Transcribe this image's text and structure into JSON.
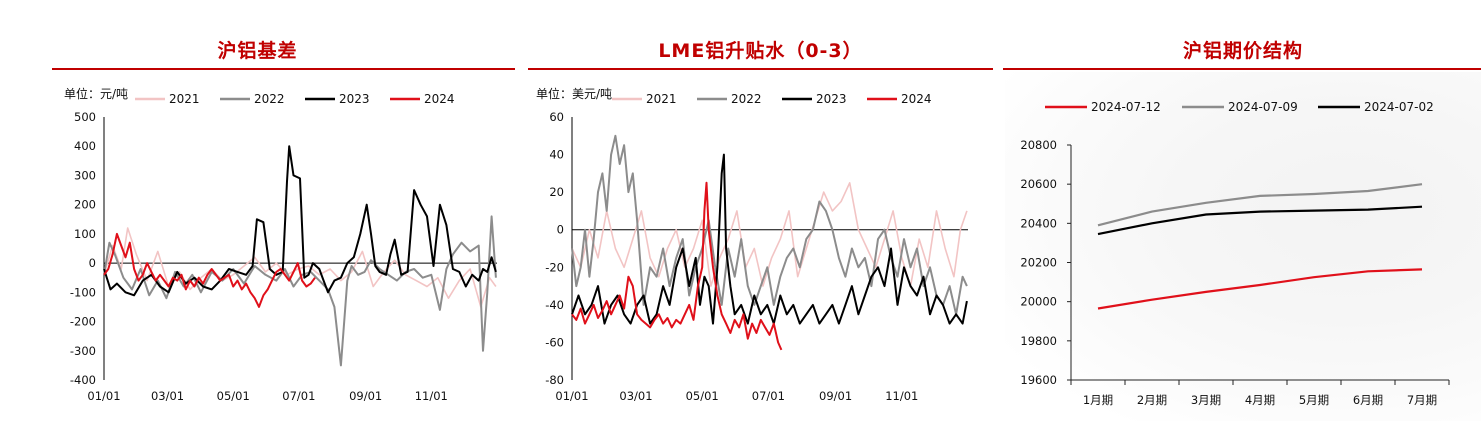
{
  "panels": [
    {
      "title": "沪铝基差"
    },
    {
      "title": "LME铝升贴水（0-3）"
    },
    {
      "title": "沪铝期价结构"
    }
  ],
  "colors": {
    "s2021": "#f2c4c4",
    "s2022": "#8c8c8c",
    "s2023": "#000000",
    "s2024": "#e0101a",
    "title": "#c00000"
  },
  "chart_data": [
    {
      "type": "line",
      "title": "沪铝基差",
      "unit_label": "单位：元/吨",
      "xlim": [
        0,
        365
      ],
      "ylim": [
        -400,
        500
      ],
      "yticks": [
        500,
        400,
        300,
        200,
        100,
        0,
        -100,
        -200,
        -300,
        -400
      ],
      "xticks": [
        {
          "label": "01/01",
          "day": 0
        },
        {
          "label": "03/01",
          "day": 59
        },
        {
          "label": "05/01",
          "day": 120
        },
        {
          "label": "07/01",
          "day": 181
        },
        {
          "label": "09/01",
          "day": 243
        },
        {
          "label": "11/01",
          "day": 304
        }
      ],
      "series": [
        {
          "name": "2021",
          "x": [
            0,
            8,
            16,
            22,
            30,
            40,
            50,
            60,
            70,
            80,
            90,
            100,
            110,
            120,
            130,
            140,
            150,
            160,
            170,
            180,
            190,
            200,
            210,
            220,
            230,
            240,
            250,
            260,
            270,
            280,
            290,
            300,
            310,
            320,
            330,
            340,
            350,
            358,
            364
          ],
          "y": [
            -40,
            60,
            -20,
            120,
            30,
            -60,
            40,
            -80,
            -30,
            -90,
            -50,
            -20,
            -60,
            -40,
            -10,
            20,
            -30,
            0,
            -40,
            -20,
            -10,
            -40,
            -20,
            -60,
            -30,
            40,
            -80,
            -30,
            10,
            -40,
            -60,
            -80,
            -50,
            -120,
            -60,
            -20,
            -150,
            -50,
            -80
          ]
        },
        {
          "name": "2022",
          "x": [
            0,
            5,
            10,
            18,
            26,
            34,
            42,
            50,
            58,
            66,
            74,
            82,
            90,
            100,
            110,
            120,
            130,
            140,
            150,
            160,
            168,
            176,
            184,
            192,
            200,
            208,
            214,
            220,
            226,
            230,
            236,
            242,
            248,
            256,
            264,
            272,
            280,
            288,
            296,
            304,
            312,
            318,
            324,
            332,
            340,
            348,
            352,
            356,
            360,
            364
          ],
          "y": [
            -40,
            70,
            30,
            -50,
            -90,
            -20,
            -110,
            -60,
            -120,
            -30,
            -80,
            -40,
            -100,
            -30,
            -60,
            -20,
            -70,
            -10,
            -40,
            -60,
            -20,
            -80,
            -40,
            -30,
            -60,
            -90,
            -150,
            -350,
            -60,
            -10,
            -40,
            -30,
            10,
            -20,
            -40,
            -60,
            -30,
            -20,
            -50,
            -40,
            -160,
            -20,
            30,
            70,
            40,
            60,
            -300,
            -100,
            160,
            -50
          ]
        },
        {
          "name": "2023",
          "x": [
            0,
            6,
            12,
            20,
            28,
            36,
            44,
            52,
            60,
            68,
            76,
            84,
            92,
            100,
            108,
            116,
            124,
            132,
            138,
            142,
            148,
            154,
            160,
            166,
            170,
            172,
            176,
            182,
            186,
            190,
            194,
            200,
            204,
            208,
            214,
            220,
            226,
            232,
            238,
            244,
            248,
            252,
            256,
            262,
            266,
            270,
            276,
            282,
            288,
            294,
            300,
            306,
            312,
            318,
            324,
            330,
            336,
            342,
            348,
            352,
            356,
            360,
            364
          ],
          "y": [
            -20,
            -90,
            -70,
            -100,
            -110,
            -60,
            -40,
            -80,
            -100,
            -30,
            -70,
            -50,
            -80,
            -90,
            -60,
            -20,
            -30,
            -40,
            -10,
            150,
            140,
            -20,
            -40,
            -30,
            280,
            400,
            300,
            290,
            -50,
            -40,
            0,
            -20,
            -60,
            -100,
            -60,
            -50,
            0,
            20,
            100,
            200,
            100,
            -10,
            -30,
            -40,
            30,
            80,
            -40,
            -30,
            250,
            200,
            160,
            -10,
            200,
            130,
            -20,
            -30,
            -80,
            -40,
            -60,
            -20,
            -30,
            20,
            -30
          ]
        },
        {
          "name": "2024",
          "x": [
            0,
            4,
            8,
            12,
            16,
            20,
            24,
            28,
            32,
            36,
            40,
            44,
            48,
            52,
            56,
            60,
            64,
            68,
            72,
            76,
            80,
            84,
            88,
            92,
            96,
            100,
            104,
            108,
            112,
            116,
            120,
            124,
            128,
            132,
            136,
            140,
            144,
            148,
            152,
            156,
            160,
            164,
            168,
            172,
            176,
            180,
            184,
            188,
            192,
            196
          ],
          "y": [
            -40,
            -20,
            30,
            100,
            60,
            20,
            70,
            -20,
            -60,
            -40,
            0,
            -30,
            -60,
            -40,
            -60,
            -80,
            -50,
            -60,
            -40,
            -90,
            -60,
            -80,
            -50,
            -70,
            -40,
            -20,
            -40,
            -60,
            -50,
            -40,
            -80,
            -60,
            -90,
            -70,
            -100,
            -120,
            -150,
            -110,
            -90,
            -60,
            -30,
            -20,
            -40,
            -60,
            -30,
            0,
            -60,
            -80,
            -70,
            -50
          ]
        }
      ]
    },
    {
      "type": "line",
      "title": "LME铝升贴水（0-3）",
      "unit_label": "单位：美元/吨",
      "xlim": [
        0,
        365
      ],
      "ylim": [
        -80,
        60
      ],
      "yticks": [
        60,
        40,
        20,
        0,
        -20,
        -40,
        -60,
        -80
      ],
      "xticks": [
        {
          "label": "01/01",
          "day": 0
        },
        {
          "label": "03/01",
          "day": 59
        },
        {
          "label": "05/01",
          "day": 120
        },
        {
          "label": "07/01",
          "day": 181
        },
        {
          "label": "09/01",
          "day": 243
        },
        {
          "label": "11/01",
          "day": 304
        }
      ],
      "series": [
        {
          "name": "2021",
          "x": [
            0,
            8,
            16,
            24,
            32,
            40,
            48,
            56,
            64,
            72,
            80,
            88,
            96,
            104,
            112,
            120,
            128,
            136,
            144,
            152,
            160,
            168,
            176,
            184,
            192,
            200,
            208,
            216,
            224,
            232,
            240,
            248,
            256,
            264,
            272,
            280,
            288,
            296,
            304,
            312,
            320,
            328,
            336,
            344,
            352,
            358,
            364
          ],
          "y": [
            -10,
            -20,
            0,
            -15,
            10,
            -10,
            -20,
            -5,
            10,
            -15,
            -25,
            -10,
            0,
            -20,
            -10,
            5,
            -30,
            -15,
            -5,
            10,
            -20,
            -10,
            -30,
            -15,
            -5,
            10,
            -25,
            -10,
            5,
            20,
            10,
            15,
            25,
            0,
            -10,
            -20,
            -5,
            10,
            -15,
            -30,
            -5,
            -20,
            10,
            -10,
            -25,
            0,
            10
          ]
        },
        {
          "name": "2022",
          "x": [
            0,
            4,
            8,
            12,
            16,
            20,
            24,
            28,
            32,
            36,
            40,
            44,
            48,
            52,
            56,
            60,
            66,
            72,
            78,
            84,
            90,
            96,
            102,
            108,
            114,
            120,
            126,
            132,
            138,
            144,
            150,
            156,
            162,
            168,
            174,
            180,
            186,
            192,
            198,
            204,
            210,
            216,
            222,
            228,
            234,
            240,
            246,
            252,
            258,
            264,
            270,
            276,
            282,
            288,
            294,
            300,
            306,
            312,
            318,
            324,
            330,
            336,
            342,
            348,
            354,
            360,
            364
          ],
          "y": [
            -10,
            -30,
            -20,
            0,
            -25,
            -5,
            20,
            30,
            10,
            40,
            50,
            35,
            45,
            20,
            30,
            5,
            -40,
            -20,
            -25,
            -10,
            -30,
            -15,
            -5,
            -35,
            -20,
            -10,
            5,
            -20,
            -40,
            -10,
            -25,
            -5,
            -30,
            -40,
            -30,
            -20,
            -40,
            -25,
            -15,
            -10,
            -20,
            -5,
            0,
            15,
            10,
            0,
            -15,
            -25,
            -10,
            -20,
            -15,
            -30,
            -5,
            0,
            -15,
            -25,
            -5,
            -20,
            -10,
            -30,
            -20,
            -35,
            -40,
            -30,
            -45,
            -25,
            -30
          ]
        },
        {
          "name": "2023",
          "x": [
            0,
            6,
            12,
            18,
            24,
            30,
            36,
            42,
            48,
            54,
            60,
            66,
            72,
            78,
            84,
            90,
            96,
            102,
            108,
            114,
            118,
            122,
            126,
            130,
            134,
            138,
            140,
            142,
            146,
            150,
            156,
            162,
            168,
            174,
            180,
            186,
            192,
            198,
            204,
            210,
            216,
            222,
            228,
            234,
            240,
            246,
            252,
            258,
            264,
            270,
            276,
            282,
            288,
            294,
            300,
            306,
            312,
            318,
            324,
            330,
            336,
            342,
            348,
            354,
            360,
            364
          ],
          "y": [
            -45,
            -35,
            -45,
            -40,
            -30,
            -50,
            -40,
            -35,
            -45,
            -50,
            -40,
            -35,
            -50,
            -45,
            -30,
            -40,
            -20,
            -10,
            -30,
            -15,
            -40,
            -25,
            -30,
            -50,
            -20,
            30,
            40,
            -10,
            -30,
            -45,
            -40,
            -50,
            -35,
            -45,
            -40,
            -50,
            -35,
            -45,
            -40,
            -50,
            -45,
            -40,
            -50,
            -45,
            -40,
            -50,
            -40,
            -30,
            -45,
            -35,
            -25,
            -20,
            -30,
            -10,
            -40,
            -20,
            -30,
            -35,
            -25,
            -45,
            -35,
            -40,
            -50,
            -45,
            -50,
            -38
          ]
        },
        {
          "name": "2024",
          "x": [
            0,
            4,
            8,
            12,
            16,
            20,
            24,
            28,
            32,
            36,
            40,
            44,
            48,
            52,
            56,
            60,
            64,
            68,
            72,
            76,
            80,
            84,
            88,
            92,
            96,
            100,
            104,
            108,
            112,
            116,
            120,
            122,
            124,
            126,
            130,
            134,
            138,
            142,
            146,
            150,
            154,
            158,
            162,
            166,
            170,
            174,
            178,
            182,
            186,
            190,
            193
          ],
          "y": [
            -45,
            -48,
            -42,
            -50,
            -45,
            -40,
            -47,
            -43,
            -38,
            -45,
            -40,
            -35,
            -42,
            -25,
            -30,
            -45,
            -48,
            -50,
            -52,
            -48,
            -45,
            -50,
            -47,
            -52,
            -48,
            -50,
            -45,
            -40,
            -48,
            -30,
            -20,
            10,
            25,
            0,
            -20,
            -35,
            -45,
            -50,
            -55,
            -48,
            -52,
            -45,
            -58,
            -50,
            -55,
            -48,
            -52,
            -56,
            -50,
            -60,
            -64
          ]
        }
      ]
    },
    {
      "type": "line",
      "title": "沪铝期价结构",
      "categories": [
        "1月期",
        "2月期",
        "3月期",
        "4月期",
        "5月期",
        "6月期",
        "7月期"
      ],
      "ylim": [
        19600,
        20800
      ],
      "yticks": [
        20800,
        20600,
        20400,
        20200,
        20000,
        19800,
        19600
      ],
      "series": [
        {
          "name": "2024-07-12",
          "values": [
            19965,
            20010,
            20050,
            20085,
            20125,
            20155,
            20165
          ]
        },
        {
          "name": "2024-07-09",
          "values": [
            20390,
            20460,
            20505,
            20540,
            20550,
            20565,
            20600
          ]
        },
        {
          "name": "2024-07-02",
          "values": [
            20345,
            20400,
            20445,
            20460,
            20465,
            20470,
            20485
          ]
        }
      ]
    }
  ]
}
